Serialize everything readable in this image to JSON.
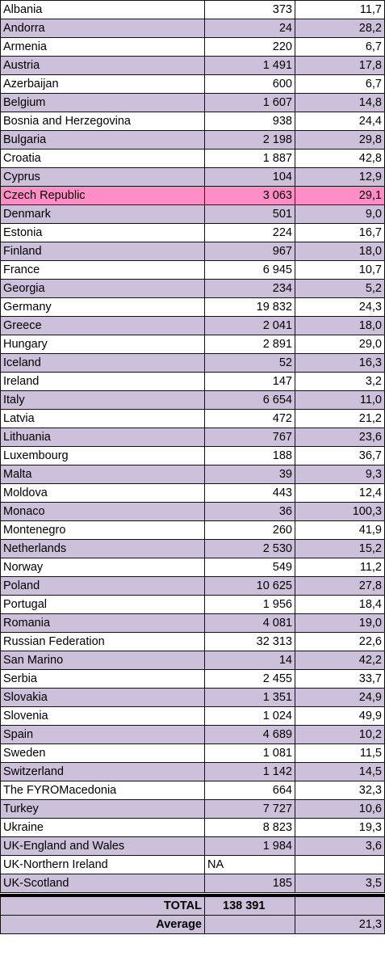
{
  "table": {
    "highlight_color": "#ff8dc6",
    "band_color": "#ccc0da",
    "rows": [
      {
        "country": "Albania",
        "count": "373",
        "rate": "11,7"
      },
      {
        "country": "Andorra",
        "count": "24",
        "rate": "28,2"
      },
      {
        "country": "Armenia",
        "count": "220",
        "rate": "6,7"
      },
      {
        "country": "Austria",
        "count": "1 491",
        "rate": "17,8"
      },
      {
        "country": "Azerbaijan",
        "count": "600",
        "rate": "6,7"
      },
      {
        "country": "Belgium",
        "count": "1 607",
        "rate": "14,8"
      },
      {
        "country": "Bosnia and Herzegovina",
        "count": "938",
        "rate": "24,4"
      },
      {
        "country": "Bulgaria",
        "count": "2 198",
        "rate": "29,8"
      },
      {
        "country": "Croatia",
        "count": "1 887",
        "rate": "42,8"
      },
      {
        "country": "Cyprus",
        "count": "104",
        "rate": "12,9"
      },
      {
        "country": "Czech Republic",
        "count": "3 063",
        "rate": "29,1",
        "highlight": true
      },
      {
        "country": "Denmark",
        "count": "501",
        "rate": "9,0"
      },
      {
        "country": "Estonia",
        "count": "224",
        "rate": "16,7"
      },
      {
        "country": "Finland",
        "count": "967",
        "rate": "18,0"
      },
      {
        "country": "France",
        "count": "6 945",
        "rate": "10,7"
      },
      {
        "country": "Georgia",
        "count": "234",
        "rate": "5,2"
      },
      {
        "country": "Germany",
        "count": "19 832",
        "rate": "24,3"
      },
      {
        "country": "Greece",
        "count": "2 041",
        "rate": "18,0"
      },
      {
        "country": "Hungary",
        "count": "2 891",
        "rate": "29,0"
      },
      {
        "country": "Iceland",
        "count": "52",
        "rate": "16,3"
      },
      {
        "country": "Ireland",
        "count": "147",
        "rate": "3,2"
      },
      {
        "country": "Italy",
        "count": "6 654",
        "rate": "11,0"
      },
      {
        "country": "Latvia",
        "count": "472",
        "rate": "21,2"
      },
      {
        "country": "Lithuania",
        "count": "767",
        "rate": "23,6"
      },
      {
        "country": "Luxembourg",
        "count": "188",
        "rate": "36,7"
      },
      {
        "country": "Malta",
        "count": "39",
        "rate": "9,3"
      },
      {
        "country": "Moldova",
        "count": "443",
        "rate": "12,4"
      },
      {
        "country": "Monaco",
        "count": "36",
        "rate": "100,3"
      },
      {
        "country": "Montenegro",
        "count": "260",
        "rate": "41,9"
      },
      {
        "country": "Netherlands",
        "count": "2 530",
        "rate": "15,2"
      },
      {
        "country": "Norway",
        "count": "549",
        "rate": "11,2"
      },
      {
        "country": "Poland",
        "count": "10 625",
        "rate": "27,8"
      },
      {
        "country": "Portugal",
        "count": "1 956",
        "rate": "18,4"
      },
      {
        "country": "Romania",
        "count": "4 081",
        "rate": "19,0"
      },
      {
        "country": "Russian Federation",
        "count": "32 313",
        "rate": "22,6"
      },
      {
        "country": "San Marino",
        "count": "14",
        "rate": "42,2"
      },
      {
        "country": "Serbia",
        "count": "2 455",
        "rate": "33,7"
      },
      {
        "country": "Slovakia",
        "count": "1 351",
        "rate": "24,9"
      },
      {
        "country": "Slovenia",
        "count": "1 024",
        "rate": "49,9"
      },
      {
        "country": "Spain",
        "count": "4 689",
        "rate": "10,2"
      },
      {
        "country": "Sweden",
        "count": "1 081",
        "rate": "11,5"
      },
      {
        "country": "Switzerland",
        "count": "1 142",
        "rate": "14,5"
      },
      {
        "country": "The FYROMacedonia",
        "count": "664",
        "rate": "32,3"
      },
      {
        "country": "Turkey",
        "count": "7 727",
        "rate": "10,6"
      },
      {
        "country": "Ukraine",
        "count": "8 823",
        "rate": "19,3"
      },
      {
        "country": "UK-England and Wales",
        "count": "1 984",
        "rate": "3,6"
      },
      {
        "country": "UK-Northern Ireland",
        "count": "NA",
        "rate": "",
        "count_align": "left"
      },
      {
        "country": "UK-Scotland",
        "count": "185",
        "rate": "3,5"
      }
    ]
  },
  "summary": {
    "total_label": "TOTAL",
    "total_value": "138 391",
    "total_rate": "",
    "average_label": "Average",
    "average_count": "",
    "average_value": "21,3"
  }
}
